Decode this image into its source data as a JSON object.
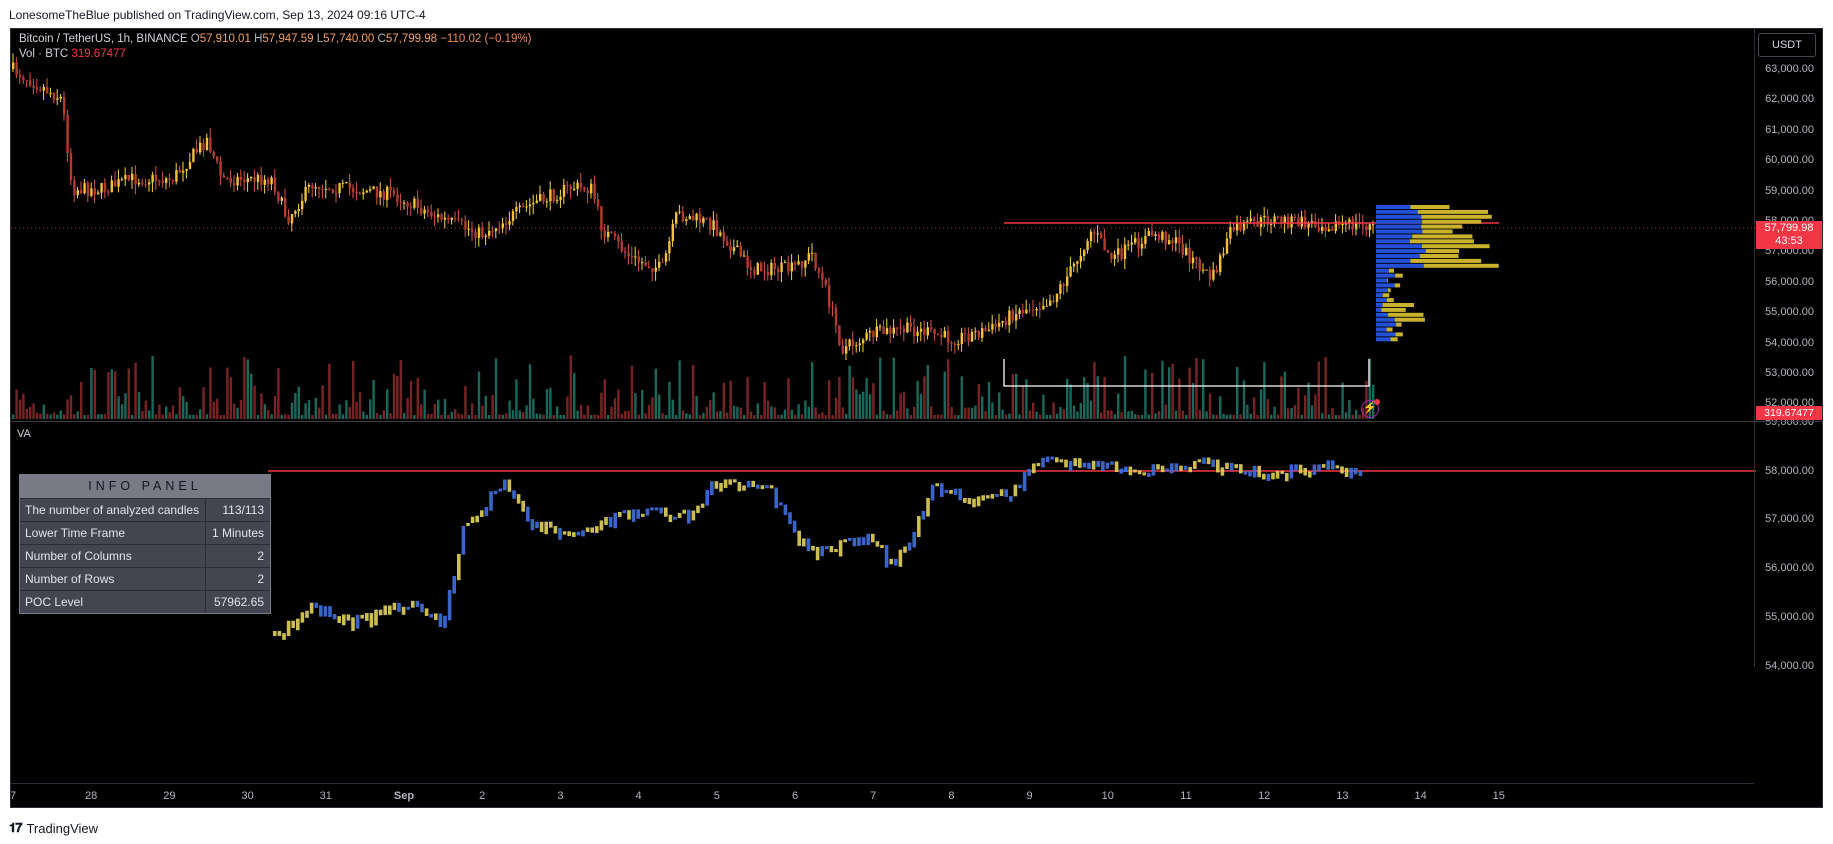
{
  "published": "LonesomeTheBlue published on TradingView.com, Sep 13, 2024 09:16 UTC-4",
  "legend": {
    "symbol": "Bitcoin / TetherUS, 1h, BINANCE",
    "o_label": "O",
    "o": "57,910.01",
    "h_label": "H",
    "h": "57,947.59",
    "l_label": "L",
    "l": "57,740.00",
    "c_label": "C",
    "c": "57,799.98",
    "change": "−110.02 (−0.19%)",
    "vol_label": "Vol · BTC",
    "vol": "319.67477"
  },
  "currency_button": "USDT",
  "last_price": "57,799.98",
  "countdown": "43:53",
  "volume_tag": "319.67477",
  "va_label": "VA",
  "top_price_ticks": [
    "63,000.00",
    "62,000.00",
    "61,000.00",
    "60,000.00",
    "59,000.00",
    "58,000.00",
    "57,000.00",
    "56,000.00",
    "55,000.00",
    "54,000.00",
    "53,000.00",
    "52,000.00"
  ],
  "bottom_price_ticks": [
    "59,000.00",
    "58,000.00",
    "57,000.00",
    "56,000.00",
    "55,000.00",
    "54,000.00"
  ],
  "time_ticks": [
    "7",
    "28",
    "29",
    "30",
    "31",
    "Sep",
    "2",
    "3",
    "4",
    "5",
    "6",
    "7",
    "8",
    "9",
    "10",
    "11",
    "12",
    "13",
    "14",
    "15"
  ],
  "info_panel": {
    "title": "INFO PANEL",
    "rows": [
      {
        "k": "The number of analyzed candles",
        "v": "113/113"
      },
      {
        "k": "Lower Time Frame",
        "v": "1 Minutes"
      },
      {
        "k": "Number of Columns",
        "v": "2"
      },
      {
        "k": "Number of Rows",
        "v": "2"
      },
      {
        "k": "POC Level",
        "v": "57962.65"
      }
    ]
  },
  "footer": "TradingView",
  "colors": {
    "up": "#f5d742",
    "down": "#d9534f",
    "up_body": "#f5c13a",
    "down_body": "#b43c2e",
    "vol_up": "#1f7a6b",
    "vol_down": "#8e2a2a",
    "poc_line": "#f23645",
    "profile_buy": "#2450d8",
    "profile_sell": "#c9b22e",
    "va_blue": "#3f6fe0",
    "va_yellow": "#e3d35a"
  }
}
